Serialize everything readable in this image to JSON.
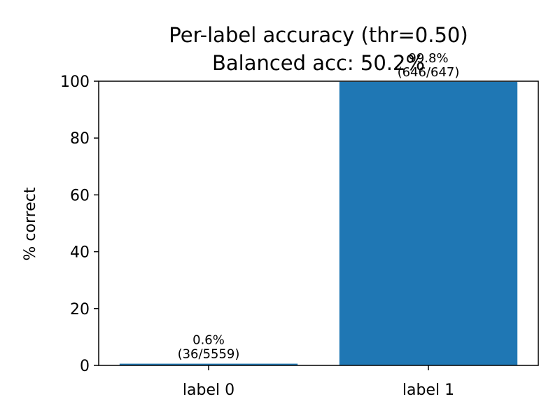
{
  "chart_data": {
    "type": "bar",
    "title": "Per-label accuracy (thr=0.50)",
    "subtitle": "Balanced acc: 50.2%",
    "xlabel": "",
    "ylabel": "% correct",
    "ylim": [
      0,
      100
    ],
    "yticks": [
      0,
      20,
      40,
      60,
      80,
      100
    ],
    "categories": [
      "label 0",
      "label 1"
    ],
    "values": [
      0.6,
      99.8
    ],
    "data_labels": [
      {
        "pct": "0.6%",
        "count": "(36/5559)"
      },
      {
        "pct": "99.8%",
        "count": "(646/647)"
      }
    ],
    "bar_color": "#1f77b4",
    "grid": false,
    "legend": "none"
  }
}
